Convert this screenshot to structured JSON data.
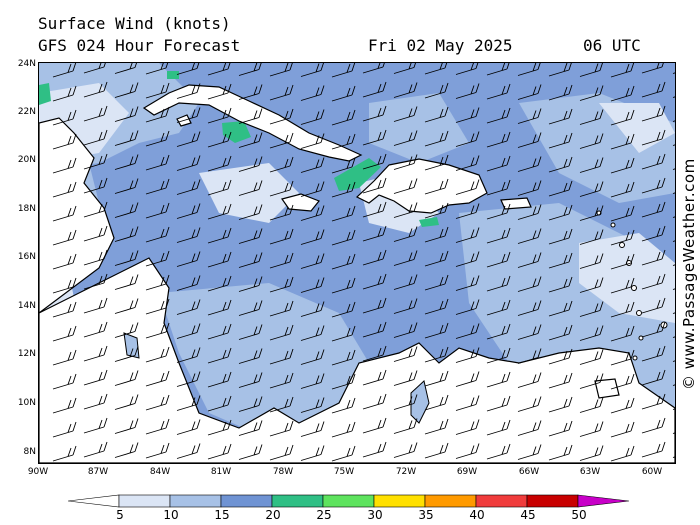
{
  "header": {
    "title": "Surface Wind (knots)",
    "subtitle": "GFS 024 Hour Forecast",
    "date": "Fri 02 May 2025",
    "time": "06 UTC"
  },
  "axes": {
    "lat_labels": [
      "24N",
      "22N",
      "20N",
      "18N",
      "16N",
      "14N",
      "12N",
      "10N",
      "8N"
    ],
    "lon_labels": [
      "90W",
      "87W",
      "84W",
      "81W",
      "78W",
      "75W",
      "72W",
      "69W",
      "66W",
      "63W",
      "60W"
    ]
  },
  "credit": "© www.PassageWeather.com",
  "colorbar": {
    "labels": [
      "5",
      "10",
      "15",
      "20",
      "25",
      "30",
      "35",
      "40",
      "45",
      "50"
    ],
    "colors": [
      "#ffffff",
      "#dbe5f5",
      "#a7c1e6",
      "#6f93d3",
      "#2fbf85",
      "#5ee35e",
      "#ffe000",
      "#ff9a00",
      "#f03c3c",
      "#c80000",
      "#c800c8"
    ]
  },
  "colors": {
    "sea_strong": "#6f93d3",
    "sea_moderate": "#a7c1e6",
    "sea_light": "#dbe5f5",
    "sea_25kt": "#2fbf85",
    "land": "#ffffff"
  }
}
